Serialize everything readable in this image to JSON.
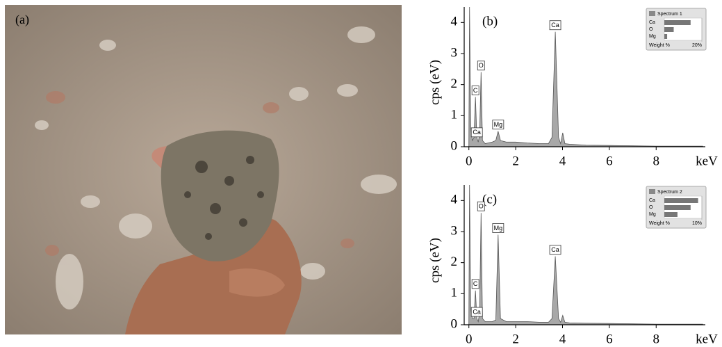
{
  "photo": {
    "label": "(a)"
  },
  "chart_data": [
    {
      "type": "line",
      "title": "(b)",
      "xlabel": "keV",
      "ylabel": "cps (eV)",
      "color": "#999999",
      "x": [
        0,
        0.03,
        0.08,
        0.15,
        0.22,
        0.28,
        0.34,
        0.4,
        0.46,
        0.52,
        0.58,
        0.7,
        1.0,
        1.15,
        1.25,
        1.35,
        1.6,
        2.0,
        2.5,
        3.0,
        3.4,
        3.55,
        3.69,
        3.83,
        3.92,
        4.01,
        4.1,
        4.3,
        5,
        6,
        7,
        8,
        9,
        10
      ],
      "values": [
        0,
        4.5,
        0.6,
        0.2,
        0.3,
        1.6,
        0.3,
        0.15,
        0.4,
        2.4,
        0.2,
        0.1,
        0.15,
        0.2,
        0.5,
        0.2,
        0.15,
        0.15,
        0.12,
        0.1,
        0.1,
        0.3,
        3.7,
        0.3,
        0.1,
        0.45,
        0.1,
        0.08,
        0.05,
        0.04,
        0.03,
        0.02,
        0.02,
        0.02
      ],
      "xlim": [
        -0.2,
        10.1
      ],
      "ylim": [
        0,
        4.5
      ],
      "xticks": [
        0,
        2,
        4,
        6,
        8
      ],
      "yticks": [
        0,
        1,
        2,
        3,
        4
      ],
      "annotations": [
        {
          "text": "C",
          "x": 0.28,
          "y": 1.6
        },
        {
          "text": "Ca",
          "x": 0.34,
          "y": 0.25
        },
        {
          "text": "O",
          "x": 0.52,
          "y": 2.4
        },
        {
          "text": "Mg",
          "x": 1.25,
          "y": 0.5
        },
        {
          "text": "Ca",
          "x": 3.69,
          "y": 3.7
        }
      ],
      "inset": {
        "title": "Spectrum 1",
        "categories": [
          "Ca",
          "O",
          "Mg"
        ],
        "values": [
          14,
          5,
          1.5
        ],
        "label": "Weight %",
        "xlim": [
          0,
          20
        ],
        "xticks": [
          {
            "value": 20,
            "label": "20%"
          }
        ]
      }
    },
    {
      "type": "line",
      "title": "(c)",
      "xlabel": "keV",
      "ylabel": "cps (eV)",
      "color": "#999999",
      "x": [
        0,
        0.03,
        0.08,
        0.15,
        0.22,
        0.28,
        0.34,
        0.4,
        0.46,
        0.52,
        0.58,
        0.7,
        1.0,
        1.15,
        1.25,
        1.35,
        1.6,
        2.0,
        2.5,
        3.0,
        3.4,
        3.55,
        3.69,
        3.83,
        3.92,
        4.01,
        4.1,
        4.3,
        5,
        6,
        7,
        8,
        9,
        10
      ],
      "values": [
        0,
        4.5,
        0.5,
        0.2,
        0.2,
        1.1,
        0.2,
        0.1,
        0.4,
        3.6,
        0.2,
        0.1,
        0.1,
        0.15,
        2.9,
        0.2,
        0.1,
        0.1,
        0.1,
        0.08,
        0.08,
        0.2,
        2.2,
        0.2,
        0.08,
        0.3,
        0.08,
        0.06,
        0.05,
        0.04,
        0.03,
        0.02,
        0.02,
        0.02
      ],
      "xlim": [
        -0.2,
        10.1
      ],
      "ylim": [
        0,
        4.5
      ],
      "xticks": [
        0,
        2,
        4,
        6,
        8
      ],
      "yticks": [
        0,
        1,
        2,
        3,
        4
      ],
      "annotations": [
        {
          "text": "C",
          "x": 0.28,
          "y": 1.1
        },
        {
          "text": "Ca",
          "x": 0.34,
          "y": 0.2
        },
        {
          "text": "O",
          "x": 0.52,
          "y": 3.6
        },
        {
          "text": "Mg",
          "x": 1.25,
          "y": 2.9
        },
        {
          "text": "Ca",
          "x": 3.69,
          "y": 2.2
        }
      ],
      "inset": {
        "title": "Spectrum 2",
        "categories": [
          "Ca",
          "O",
          "Mg"
        ],
        "values": [
          9,
          7,
          3.5
        ],
        "label": "Weight %",
        "xlim": [
          0,
          10
        ],
        "xticks": [
          {
            "value": 10,
            "label": "10%"
          }
        ]
      }
    }
  ]
}
